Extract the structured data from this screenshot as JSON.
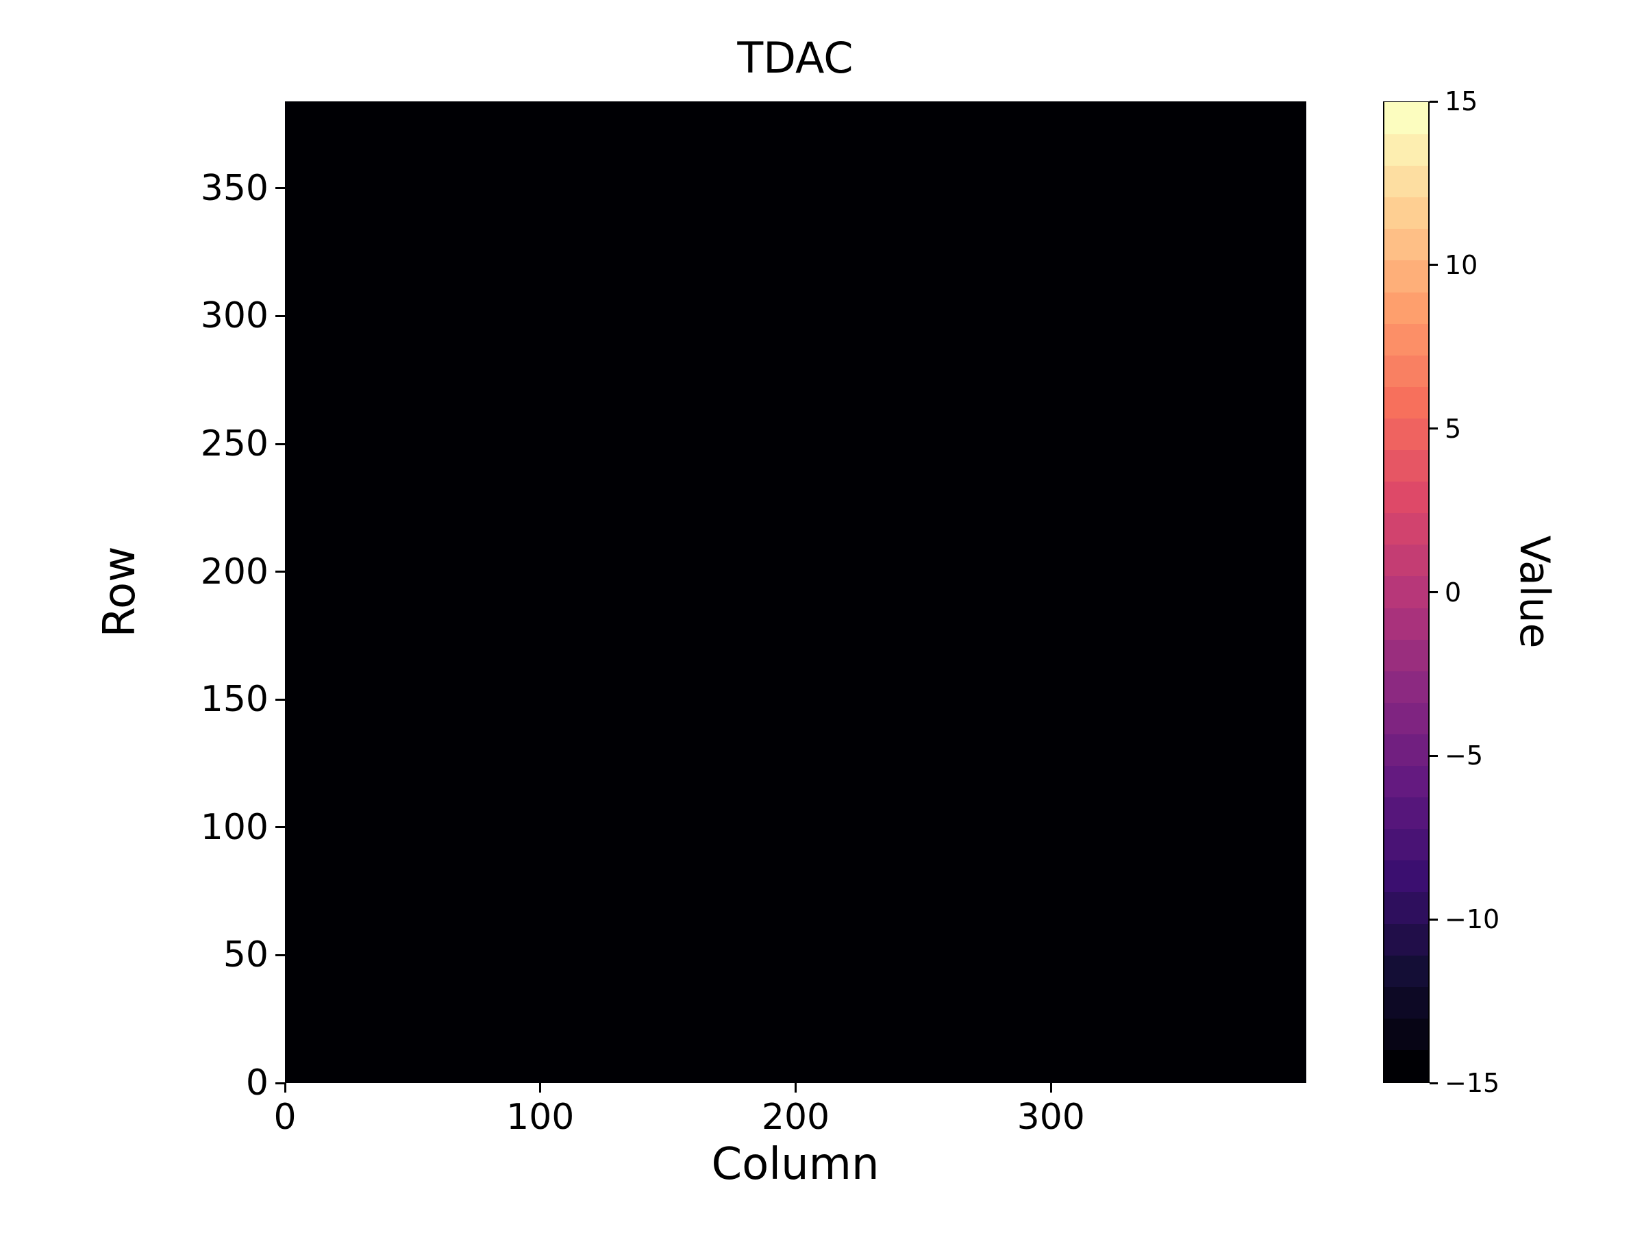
{
  "figure": {
    "background_color": "#ffffff",
    "text_color": "#000000"
  },
  "chart_data": {
    "type": "heatmap",
    "title": "TDAC",
    "xlabel": "Column",
    "ylabel": "Row",
    "x_range": [
      0,
      400
    ],
    "y_range": [
      0,
      384
    ],
    "x_ticks": [
      0,
      100,
      200,
      300
    ],
    "y_ticks": [
      0,
      50,
      100,
      150,
      200,
      250,
      300,
      350
    ],
    "grid": false,
    "values_summary": "uniform map: every cell at the colormap minimum, rendered solid black",
    "uniform_value": -15,
    "cell_color": "#000004",
    "colorbar": {
      "label": "Value",
      "min": -15,
      "max": 15,
      "ticks": [
        15,
        10,
        5,
        0,
        -5,
        -10,
        -15
      ],
      "n_levels": 31,
      "colormap": "magma",
      "stops": [
        "#000004",
        "#140e36",
        "#3b0f70",
        "#641a80",
        "#8c2981",
        "#b73779",
        "#de4968",
        "#f7705c",
        "#fe9f6d",
        "#fecf92",
        "#fcfdbf"
      ]
    }
  }
}
